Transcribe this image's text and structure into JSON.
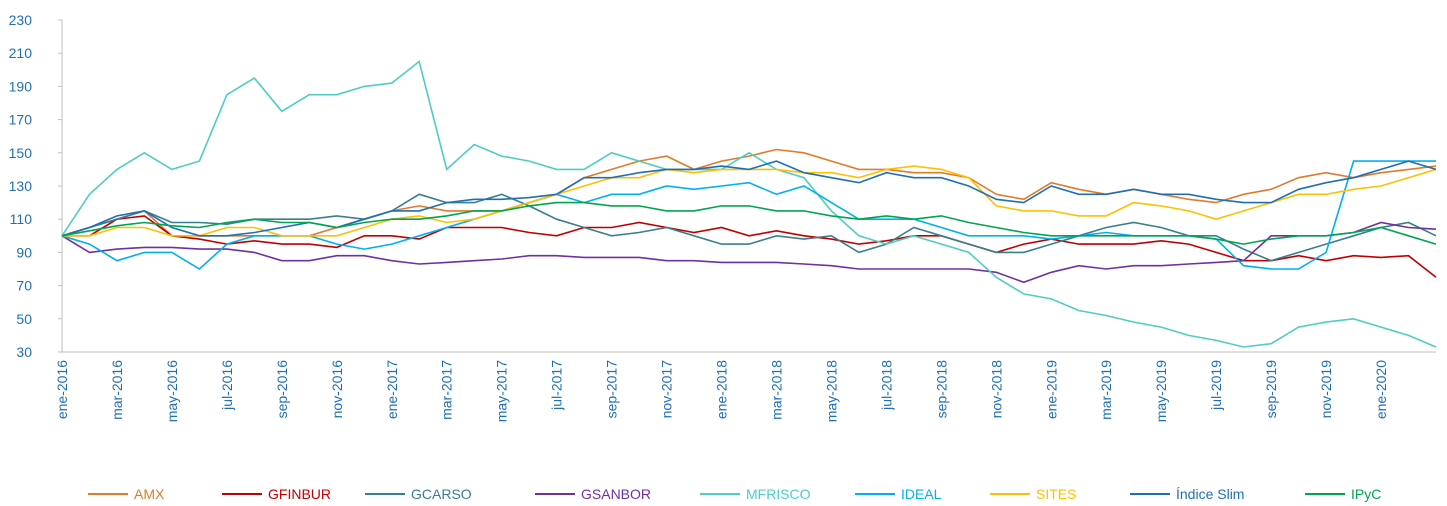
{
  "chart_data": {
    "type": "line",
    "categories": [
      "ene-2016",
      null,
      "mar-2016",
      null,
      "may-2016",
      null,
      "jul-2016",
      null,
      "sep-2016",
      null,
      "nov-2016",
      null,
      "ene-2017",
      null,
      "mar-2017",
      null,
      "may-2017",
      null,
      "jul-2017",
      null,
      "sep-2017",
      null,
      "nov-2017",
      null,
      "ene-2018",
      null,
      "mar-2018",
      null,
      "may-2018",
      null,
      "jul-2018",
      null,
      "sep-2018",
      null,
      "nov-2018",
      null,
      "ene-2019",
      null,
      "mar-2019",
      null,
      "may-2019",
      null,
      "jul-2019",
      null,
      "sep-2019",
      null,
      "nov-2019",
      null,
      "ene-2020",
      null,
      null
    ],
    "ylim": [
      30,
      230
    ],
    "yticks": [
      30,
      50,
      70,
      90,
      110,
      130,
      150,
      170,
      190,
      210,
      230
    ],
    "legend": "bottom",
    "series": [
      {
        "name": "AMX",
        "color": "#e07b2a",
        "values": [
          100,
          105,
          110,
          115,
          100,
          100,
          100,
          100,
          100,
          100,
          105,
          110,
          115,
          118,
          115,
          115,
          115,
          120,
          125,
          135,
          140,
          145,
          148,
          140,
          145,
          148,
          152,
          150,
          145,
          140,
          140,
          138,
          138,
          135,
          125,
          122,
          132,
          128,
          125,
          128,
          125,
          122,
          120,
          125,
          128,
          135,
          138,
          135,
          138,
          140,
          142
        ]
      },
      {
        "name": "GFINBUR",
        "color": "#c00000",
        "values": [
          100,
          100,
          110,
          112,
          100,
          98,
          95,
          97,
          95,
          95,
          93,
          100,
          100,
          98,
          105,
          105,
          105,
          102,
          100,
          105,
          105,
          108,
          105,
          102,
          105,
          100,
          103,
          100,
          98,
          95,
          97,
          100,
          100,
          95,
          90,
          95,
          98,
          95,
          95,
          95,
          97,
          95,
          90,
          85,
          85,
          88,
          85,
          88,
          87,
          88,
          75
        ]
      },
      {
        "name": "GCARSO",
        "color": "#3a7f8f",
        "values": [
          100,
          105,
          110,
          115,
          108,
          108,
          107,
          110,
          110,
          110,
          112,
          110,
          115,
          125,
          120,
          120,
          125,
          118,
          110,
          105,
          100,
          102,
          105,
          100,
          95,
          95,
          100,
          98,
          100,
          90,
          95,
          105,
          100,
          95,
          90,
          90,
          95,
          100,
          105,
          108,
          105,
          100,
          100,
          92,
          85,
          90,
          95,
          100,
          105,
          108,
          100
        ]
      },
      {
        "name": "GSANBOR",
        "color": "#7030a0",
        "values": [
          100,
          90,
          92,
          93,
          93,
          92,
          92,
          90,
          85,
          85,
          88,
          88,
          85,
          83,
          84,
          85,
          86,
          88,
          88,
          87,
          87,
          87,
          85,
          85,
          84,
          84,
          84,
          83,
          82,
          80,
          80,
          80,
          80,
          80,
          78,
          72,
          78,
          82,
          80,
          82,
          82,
          83,
          84,
          85,
          100,
          100,
          100,
          102,
          108,
          105,
          104
        ]
      },
      {
        "name": "MFRISCO",
        "color": "#4ecdc4",
        "values": [
          100,
          125,
          140,
          150,
          140,
          145,
          185,
          195,
          175,
          185,
          185,
          190,
          192,
          205,
          140,
          155,
          148,
          145,
          140,
          140,
          150,
          145,
          140,
          140,
          140,
          150,
          140,
          135,
          115,
          100,
          95,
          100,
          95,
          90,
          75,
          65,
          62,
          55,
          52,
          48,
          45,
          40,
          37,
          33,
          35,
          45,
          48,
          50,
          45,
          40,
          33
        ]
      },
      {
        "name": "IDEAL",
        "color": "#00b0f0",
        "values": [
          100,
          95,
          85,
          90,
          90,
          80,
          95,
          100,
          100,
          100,
          95,
          92,
          95,
          100,
          105,
          110,
          115,
          120,
          125,
          120,
          125,
          125,
          130,
          128,
          130,
          132,
          125,
          130,
          120,
          110,
          110,
          110,
          105,
          100,
          100,
          100,
          98,
          100,
          102,
          100,
          100,
          100,
          98,
          82,
          80,
          80,
          90,
          145,
          145,
          145,
          145
        ]
      },
      {
        "name": "SITES",
        "color": "#ffc000",
        "values": [
          100,
          100,
          105,
          105,
          100,
          100,
          105,
          105,
          100,
          100,
          100,
          105,
          110,
          112,
          108,
          110,
          115,
          120,
          125,
          130,
          135,
          135,
          140,
          138,
          140,
          140,
          140,
          138,
          138,
          135,
          140,
          142,
          140,
          135,
          118,
          115,
          115,
          112,
          112,
          120,
          118,
          115,
          110,
          115,
          120,
          125,
          125,
          128,
          130,
          135,
          140
        ]
      },
      {
        "name": "Índice Slim",
        "color": "#1f6fb5",
        "values": [
          100,
          105,
          112,
          115,
          105,
          100,
          100,
          102,
          105,
          108,
          105,
          110,
          115,
          115,
          120,
          122,
          122,
          123,
          125,
          135,
          135,
          138,
          140,
          140,
          142,
          140,
          145,
          138,
          135,
          132,
          138,
          135,
          135,
          130,
          122,
          120,
          130,
          125,
          125,
          128,
          125,
          125,
          122,
          120,
          120,
          128,
          132,
          135,
          140,
          145,
          140
        ]
      },
      {
        "name": "IPyC",
        "color": "#00a550",
        "values": [
          100,
          103,
          106,
          108,
          106,
          105,
          108,
          110,
          108,
          108,
          105,
          108,
          110,
          110,
          112,
          115,
          115,
          118,
          120,
          120,
          118,
          118,
          115,
          115,
          118,
          118,
          115,
          115,
          112,
          110,
          112,
          110,
          112,
          108,
          105,
          102,
          100,
          100,
          100,
          100,
          100,
          100,
          98,
          95,
          98,
          100,
          100,
          102,
          105,
          100,
          95
        ]
      }
    ]
  }
}
